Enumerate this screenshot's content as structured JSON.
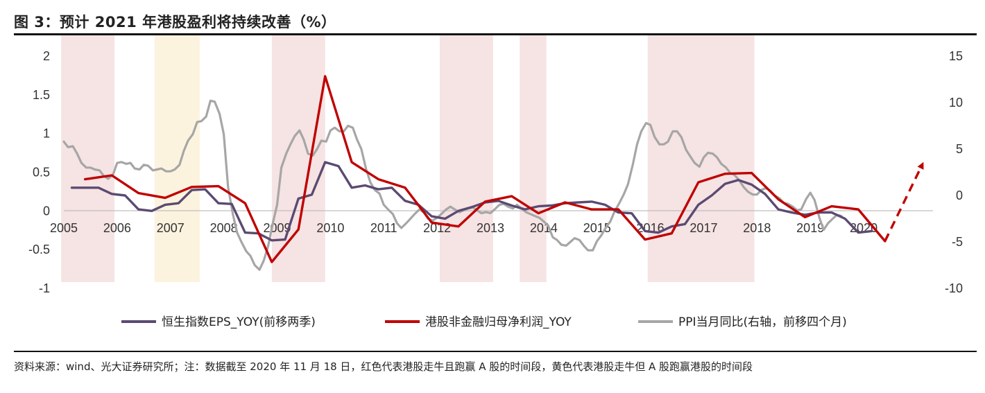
{
  "title": "图 3：预计 2021 年港股盈利将持续改善（%）",
  "source": "资料来源：wind、光大证券研究所；注：数据截至 2020 年 11 月 18 日，红色代表港股走牛且跑赢 A 股的时间段，黄色代表港股走牛但 A 股跑赢港股的时间段",
  "chart_data": {
    "type": "line",
    "x_range": [
      2005.0,
      2021.3
    ],
    "x_ticks": [
      "2005",
      "2006",
      "2007",
      "2008",
      "2009",
      "2010",
      "2011",
      "2012",
      "2013",
      "2014",
      "2015",
      "2016",
      "2017",
      "2018",
      "2019",
      "2020"
    ],
    "left_axis": {
      "range": [
        -1,
        2
      ],
      "ticks": [
        "2",
        "1.5",
        "1",
        "0.5",
        "0",
        "-0.5",
        "-1"
      ]
    },
    "right_axis": {
      "range": [
        -10,
        15
      ],
      "ticks": [
        "15",
        "10",
        "5",
        "0",
        "-5",
        "-10"
      ]
    },
    "shaded_periods": [
      {
        "start": 2004.95,
        "end": 2005.95,
        "color": "#F6E3E3"
      },
      {
        "start": 2006.7,
        "end": 2007.55,
        "color": "#FCF3DF"
      },
      {
        "start": 2008.9,
        "end": 2009.9,
        "color": "#F6E3E3"
      },
      {
        "start": 2012.05,
        "end": 2013.05,
        "color": "#F6E3E3"
      },
      {
        "start": 2013.55,
        "end": 2014.05,
        "color": "#F6E3E3"
      },
      {
        "start": 2015.95,
        "end": 2017.95,
        "color": "#F6E3E3"
      }
    ],
    "series": [
      {
        "name": "恒生指数EPS_YOY(前移两季)",
        "color": "#5B4A72",
        "axis": "left",
        "points": [
          [
            2005.15,
            0.3
          ],
          [
            2005.4,
            0.3
          ],
          [
            2005.65,
            0.3
          ],
          [
            2005.9,
            0.22
          ],
          [
            2006.15,
            0.2
          ],
          [
            2006.4,
            0.02
          ],
          [
            2006.65,
            0.0
          ],
          [
            2006.9,
            0.08
          ],
          [
            2007.15,
            0.1
          ],
          [
            2007.4,
            0.27
          ],
          [
            2007.65,
            0.28
          ],
          [
            2007.9,
            0.1
          ],
          [
            2008.15,
            0.09
          ],
          [
            2008.4,
            -0.28
          ],
          [
            2008.65,
            -0.29
          ],
          [
            2008.9,
            -0.38
          ],
          [
            2009.15,
            -0.37
          ],
          [
            2009.4,
            0.16
          ],
          [
            2009.65,
            0.21
          ],
          [
            2009.9,
            0.63
          ],
          [
            2010.15,
            0.58
          ],
          [
            2010.4,
            0.3
          ],
          [
            2010.65,
            0.33
          ],
          [
            2010.9,
            0.28
          ],
          [
            2011.15,
            0.3
          ],
          [
            2011.4,
            0.13
          ],
          [
            2011.65,
            0.08
          ],
          [
            2011.9,
            -0.07
          ],
          [
            2012.15,
            -0.1
          ],
          [
            2012.4,
            0.0
          ],
          [
            2012.65,
            0.05
          ],
          [
            2012.9,
            0.11
          ],
          [
            2013.15,
            0.13
          ],
          [
            2013.4,
            0.07
          ],
          [
            2013.65,
            0.02
          ],
          [
            2013.9,
            0.06
          ],
          [
            2014.15,
            0.07
          ],
          [
            2014.4,
            0.1
          ],
          [
            2014.65,
            0.11
          ],
          [
            2014.9,
            0.12
          ],
          [
            2015.15,
            0.08
          ],
          [
            2015.4,
            -0.02
          ],
          [
            2015.65,
            -0.03
          ],
          [
            2015.9,
            -0.26
          ],
          [
            2016.15,
            -0.28
          ],
          [
            2016.4,
            -0.2
          ],
          [
            2016.65,
            -0.17
          ],
          [
            2016.9,
            0.08
          ],
          [
            2017.15,
            0.2
          ],
          [
            2017.4,
            0.35
          ],
          [
            2017.65,
            0.4
          ],
          [
            2017.9,
            0.34
          ],
          [
            2018.15,
            0.22
          ],
          [
            2018.4,
            0.02
          ],
          [
            2018.65,
            -0.02
          ],
          [
            2018.9,
            -0.05
          ],
          [
            2019.15,
            -0.02
          ],
          [
            2019.4,
            -0.02
          ],
          [
            2019.65,
            -0.1
          ],
          [
            2019.9,
            -0.28
          ],
          [
            2020.15,
            -0.26
          ]
        ]
      },
      {
        "name": "港股非金融归母净利润_YOY",
        "color": "#C00000",
        "axis": "left",
        "points": [
          [
            2005.4,
            0.41
          ],
          [
            2005.9,
            0.46
          ],
          [
            2006.4,
            0.23
          ],
          [
            2006.9,
            0.17
          ],
          [
            2007.4,
            0.31
          ],
          [
            2007.9,
            0.32
          ],
          [
            2008.4,
            0.1
          ],
          [
            2008.9,
            -0.66
          ],
          [
            2009.4,
            -0.24
          ],
          [
            2009.9,
            1.74
          ],
          [
            2010.4,
            0.63
          ],
          [
            2010.9,
            0.41
          ],
          [
            2011.4,
            0.3
          ],
          [
            2011.9,
            -0.15
          ],
          [
            2012.4,
            -0.2
          ],
          [
            2012.9,
            0.12
          ],
          [
            2013.4,
            0.19
          ],
          [
            2013.9,
            -0.03
          ],
          [
            2014.4,
            0.11
          ],
          [
            2014.9,
            0.02
          ],
          [
            2015.4,
            0.02
          ],
          [
            2015.9,
            -0.37
          ],
          [
            2016.4,
            -0.29
          ],
          [
            2016.9,
            0.37
          ],
          [
            2017.4,
            0.48
          ],
          [
            2017.9,
            0.49
          ],
          [
            2018.4,
            0.15
          ],
          [
            2018.9,
            -0.08
          ],
          [
            2019.4,
            0.06
          ],
          [
            2019.9,
            0.02
          ],
          [
            2020.4,
            -0.39
          ]
        ]
      },
      {
        "name": "PPI当月同比(右轴，前移四个月)",
        "color": "#A6A6A6",
        "axis": "right",
        "points": [
          [
            2005.0,
            5.8
          ],
          [
            2005.08,
            5.2
          ],
          [
            2005.17,
            5.3
          ],
          [
            2005.25,
            4.5
          ],
          [
            2005.33,
            3.5
          ],
          [
            2005.42,
            3.0
          ],
          [
            2005.5,
            3.0
          ],
          [
            2005.58,
            2.8
          ],
          [
            2005.67,
            2.7
          ],
          [
            2005.75,
            2.1
          ],
          [
            2005.83,
            1.8
          ],
          [
            2005.92,
            2.2
          ],
          [
            2006.0,
            3.5
          ],
          [
            2006.08,
            3.6
          ],
          [
            2006.17,
            3.4
          ],
          [
            2006.25,
            3.5
          ],
          [
            2006.33,
            2.9
          ],
          [
            2006.42,
            2.8
          ],
          [
            2006.5,
            3.3
          ],
          [
            2006.58,
            3.2
          ],
          [
            2006.67,
            2.7
          ],
          [
            2006.75,
            2.8
          ],
          [
            2006.83,
            2.9
          ],
          [
            2006.92,
            2.6
          ],
          [
            2007.0,
            2.6
          ],
          [
            2007.08,
            2.8
          ],
          [
            2007.17,
            3.3
          ],
          [
            2007.25,
            4.8
          ],
          [
            2007.33,
            5.9
          ],
          [
            2007.42,
            6.6
          ],
          [
            2007.5,
            7.9
          ],
          [
            2007.58,
            8.0
          ],
          [
            2007.67,
            8.5
          ],
          [
            2007.75,
            10.2
          ],
          [
            2007.83,
            10.1
          ],
          [
            2007.92,
            8.8
          ],
          [
            2008.0,
            6.6
          ],
          [
            2008.08,
            0.9
          ],
          [
            2008.17,
            -2.0
          ],
          [
            2008.25,
            -4.0
          ],
          [
            2008.33,
            -5.0
          ],
          [
            2008.42,
            -6.0
          ],
          [
            2008.5,
            -6.5
          ],
          [
            2008.58,
            -7.5
          ],
          [
            2008.67,
            -8.0
          ],
          [
            2008.75,
            -7.0
          ],
          [
            2008.83,
            -5.5
          ],
          [
            2008.92,
            -3.0
          ],
          [
            2009.0,
            -1.0
          ],
          [
            2009.08,
            3.0
          ],
          [
            2009.17,
            4.5
          ],
          [
            2009.25,
            5.5
          ],
          [
            2009.33,
            6.4
          ],
          [
            2009.42,
            7.0
          ],
          [
            2009.5,
            6.0
          ],
          [
            2009.58,
            4.5
          ],
          [
            2009.67,
            4.3
          ],
          [
            2009.75,
            5.0
          ],
          [
            2009.83,
            5.9
          ],
          [
            2009.92,
            5.8
          ],
          [
            2010.0,
            7.0
          ],
          [
            2010.08,
            7.3
          ],
          [
            2010.17,
            6.9
          ],
          [
            2010.25,
            6.9
          ],
          [
            2010.33,
            7.5
          ],
          [
            2010.42,
            7.3
          ],
          [
            2010.5,
            6.0
          ],
          [
            2010.58,
            5.0
          ],
          [
            2010.67,
            2.8
          ],
          [
            2010.75,
            1.4
          ],
          [
            2010.83,
            0.6
          ],
          [
            2010.92,
            0.2
          ],
          [
            2011.0,
            -1.0
          ],
          [
            2011.08,
            -1.5
          ],
          [
            2011.17,
            -2.0
          ],
          [
            2011.25,
            -3.0
          ],
          [
            2011.33,
            -3.5
          ],
          [
            2011.42,
            -3.0
          ],
          [
            2011.5,
            -2.5
          ],
          [
            2011.58,
            -2.0
          ],
          [
            2011.67,
            -1.5
          ],
          [
            2011.75,
            -1.8
          ],
          [
            2011.83,
            -2.5
          ],
          [
            2011.92,
            -2.7
          ],
          [
            2012.0,
            -2.4
          ],
          [
            2012.08,
            -2.0
          ],
          [
            2012.17,
            -1.5
          ],
          [
            2012.25,
            -1.2
          ],
          [
            2012.33,
            -1.5
          ],
          [
            2012.42,
            -1.8
          ],
          [
            2012.5,
            -1.6
          ],
          [
            2012.58,
            -1.4
          ],
          [
            2012.67,
            -1.3
          ],
          [
            2012.75,
            -1.6
          ],
          [
            2012.83,
            -1.9
          ],
          [
            2012.92,
            -1.8
          ],
          [
            2013.0,
            -1.9
          ],
          [
            2013.08,
            -1.5
          ],
          [
            2013.17,
            -1.0
          ],
          [
            2013.25,
            -0.9
          ],
          [
            2013.33,
            -1.2
          ],
          [
            2013.42,
            -1.4
          ],
          [
            2013.5,
            -1.0
          ],
          [
            2013.58,
            -1.4
          ],
          [
            2013.67,
            -1.8
          ],
          [
            2013.75,
            -2.0
          ],
          [
            2013.83,
            -2.2
          ],
          [
            2013.92,
            -2.4
          ],
          [
            2014.0,
            -2.8
          ],
          [
            2014.08,
            -3.2
          ],
          [
            2014.17,
            -4.5
          ],
          [
            2014.25,
            -4.8
          ],
          [
            2014.33,
            -5.3
          ],
          [
            2014.42,
            -5.4
          ],
          [
            2014.5,
            -5.0
          ],
          [
            2014.58,
            -4.6
          ],
          [
            2014.67,
            -4.8
          ],
          [
            2014.75,
            -5.4
          ],
          [
            2014.83,
            -5.9
          ],
          [
            2014.92,
            -5.9
          ],
          [
            2015.0,
            -4.9
          ],
          [
            2015.08,
            -4.3
          ],
          [
            2015.17,
            -3.4
          ],
          [
            2015.25,
            -2.8
          ],
          [
            2015.33,
            -1.7
          ],
          [
            2015.42,
            -0.8
          ],
          [
            2015.5,
            0.1
          ],
          [
            2015.58,
            1.2
          ],
          [
            2015.67,
            3.3
          ],
          [
            2015.75,
            5.5
          ],
          [
            2015.83,
            6.9
          ],
          [
            2015.92,
            7.8
          ],
          [
            2016.0,
            7.6
          ],
          [
            2016.08,
            6.3
          ],
          [
            2016.17,
            5.5
          ],
          [
            2016.25,
            5.5
          ],
          [
            2016.33,
            5.8
          ],
          [
            2016.42,
            6.9
          ],
          [
            2016.5,
            6.9
          ],
          [
            2016.58,
            6.3
          ],
          [
            2016.67,
            4.9
          ],
          [
            2016.75,
            4.2
          ],
          [
            2016.83,
            3.5
          ],
          [
            2016.92,
            3.1
          ],
          [
            2017.0,
            4.1
          ],
          [
            2017.08,
            4.6
          ],
          [
            2017.17,
            4.5
          ],
          [
            2017.25,
            4.1
          ],
          [
            2017.33,
            3.4
          ],
          [
            2017.42,
            3.0
          ],
          [
            2017.5,
            2.4
          ],
          [
            2017.58,
            2.2
          ],
          [
            2017.67,
            1.6
          ],
          [
            2017.75,
            0.9
          ],
          [
            2017.83,
            0.4
          ],
          [
            2017.92,
            0.1
          ],
          [
            2018.0,
            0.1
          ],
          [
            2018.08,
            0.6
          ],
          [
            2018.17,
            0.8
          ],
          [
            2018.25,
            0.5
          ],
          [
            2018.33,
            0.0
          ],
          [
            2018.42,
            -0.3
          ],
          [
            2018.5,
            -0.8
          ],
          [
            2018.58,
            -0.9
          ],
          [
            2018.67,
            -1.2
          ],
          [
            2018.75,
            -1.6
          ],
          [
            2018.83,
            -1.5
          ],
          [
            2018.92,
            -0.4
          ],
          [
            2019.0,
            0.3
          ],
          [
            2019.08,
            -0.5
          ],
          [
            2019.17,
            -2.4
          ],
          [
            2019.25,
            -3.7
          ],
          [
            2019.33,
            -3.0
          ],
          [
            2019.42,
            -2.5
          ],
          [
            2019.5,
            -2.1
          ],
          [
            2019.58,
            -2.2
          ]
        ]
      }
    ],
    "forecast_arrow": {
      "from": [
        2020.4,
        -0.39
      ],
      "to": [
        2021.1,
        0.6
      ],
      "color": "#C00000"
    },
    "legend": {
      "position": "bottom"
    }
  }
}
